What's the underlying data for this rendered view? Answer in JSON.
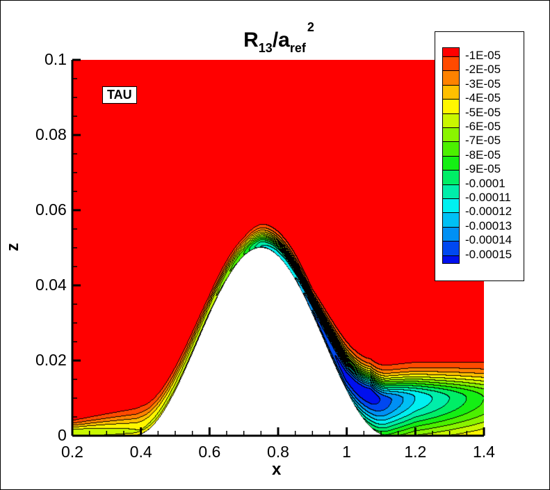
{
  "chart_data": {
    "type": "heatmap",
    "subtype": "filled-contour",
    "title": {
      "main": "R",
      "sub1": "13",
      "mid": "/a",
      "sub2": "ref",
      "sup": "2"
    },
    "xlabel": "x",
    "ylabel": "z",
    "xlim": [
      0.2,
      1.4
    ],
    "ylim": [
      0,
      0.1
    ],
    "x_ticks": [
      "0.2",
      "0.4",
      "0.6",
      "0.8",
      "1",
      "1.2",
      "1.4"
    ],
    "y_ticks": [
      "0",
      "0.02",
      "0.04",
      "0.06",
      "0.08",
      "0.1"
    ],
    "annotation": "TAU",
    "legend_position": "top-right",
    "levels": [
      "-1E-05",
      "-2E-05",
      "-3E-05",
      "-4E-05",
      "-5E-05",
      "-6E-05",
      "-7E-05",
      "-8E-05",
      "-9E-05",
      "-0.0001",
      "-0.00011",
      "-0.00012",
      "-0.00013",
      "-0.00014",
      "-0.00015"
    ],
    "colors": [
      "#ff0000",
      "#ff4a00",
      "#ff8200",
      "#ffc000",
      "#fff700",
      "#c9f700",
      "#8af400",
      "#4cf000",
      "#14ef14",
      "#00ee66",
      "#00eeaa",
      "#00f0f0",
      "#00c0f4",
      "#0090f4",
      "#0048f0",
      "#0010ee"
    ],
    "body_fill": "#ffffff"
  }
}
